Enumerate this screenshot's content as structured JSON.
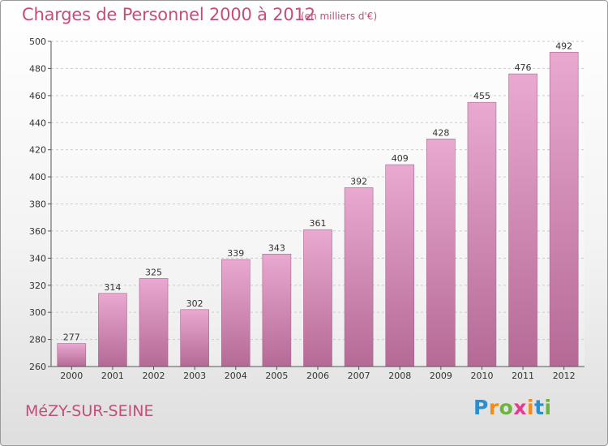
{
  "title": "Charges de Personnel 2000 à 2012",
  "subtitle": "(en milliers d'€)",
  "commune": "MéZY-SUR-SEINE",
  "logo": {
    "text": "Proxiti",
    "letters": [
      {
        "ch": "P",
        "color": "#2a8fd0"
      },
      {
        "ch": "r",
        "color": "#f28c1e"
      },
      {
        "ch": "o",
        "color": "#6cb33f"
      },
      {
        "ch": "x",
        "color": "#e63a8f"
      },
      {
        "ch": "i",
        "color": "#f28c1e"
      },
      {
        "ch": "t",
        "color": "#2a8fd0"
      },
      {
        "ch": "i",
        "color": "#6cb33f"
      }
    ]
  },
  "colors": {
    "title": "#c24f7a",
    "bar_top": "#e9a9d0",
    "bar_bottom": "#b56a96",
    "grid": "#cccccc",
    "axis": "#555555"
  },
  "chart_data": {
    "type": "bar",
    "title": "Charges de Personnel 2000 à 2012",
    "subtitle": "(en milliers d'€)",
    "xlabel": "",
    "ylabel": "",
    "categories": [
      "2000",
      "2001",
      "2002",
      "2003",
      "2004",
      "2005",
      "2006",
      "2007",
      "2008",
      "2009",
      "2010",
      "2011",
      "2012"
    ],
    "values": [
      277,
      314,
      325,
      302,
      339,
      343,
      361,
      392,
      409,
      428,
      455,
      476,
      492
    ],
    "ylim": [
      260,
      500
    ],
    "yticks": [
      260,
      280,
      300,
      320,
      340,
      360,
      380,
      400,
      420,
      440,
      460,
      480,
      500
    ],
    "grid": true,
    "data_labels": true
  }
}
